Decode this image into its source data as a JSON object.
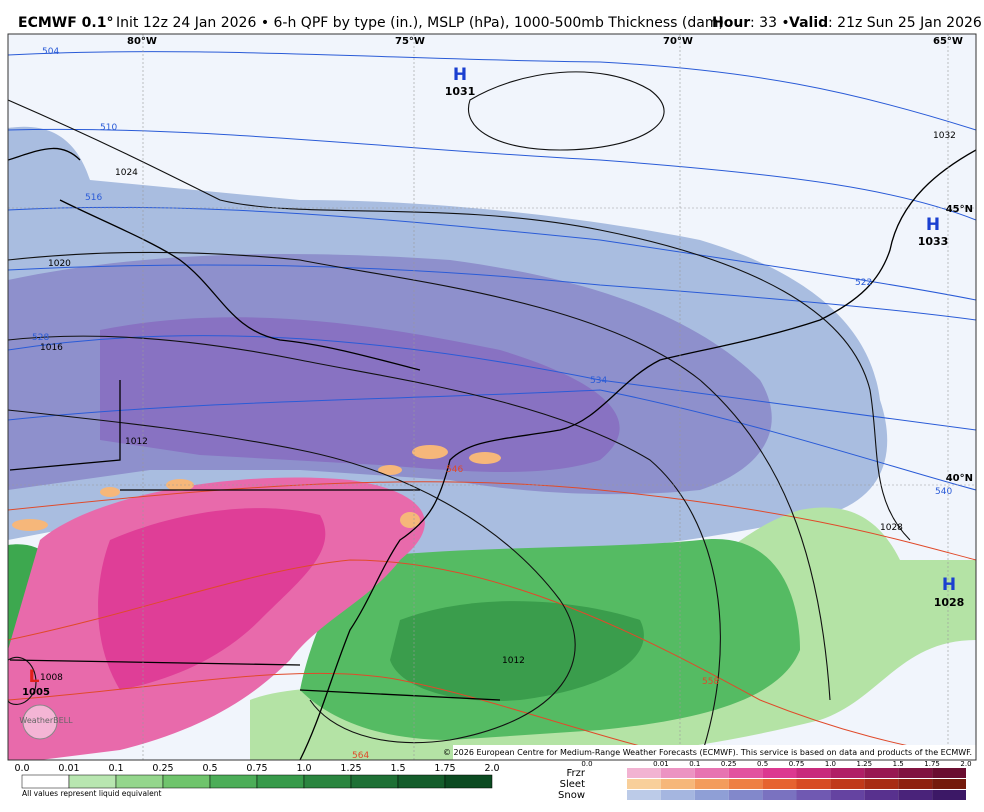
{
  "header": {
    "model": "ECMWF 0.1°",
    "description": "Init 12z 24 Jan 2026 • 6-h QPF by type (in.), MSLP (hPa), 1000-500mb Thickness (dam)",
    "hour_label": "Hour",
    "hour": ": 33 •",
    "valid_label": "Valid",
    "valid": ": 21z Sun 25 Jan 2026"
  },
  "map": {
    "longitudes": [
      "80°W",
      "75°W",
      "70°W",
      "65°W"
    ],
    "latitudes": [
      "45°N",
      "40°N"
    ],
    "pressure_centers": [
      {
        "symbol": "H",
        "value": "1031"
      },
      {
        "symbol": "H",
        "value": "1033"
      },
      {
        "symbol": "H",
        "value": "1028"
      },
      {
        "symbol": "L",
        "value": "1005"
      }
    ],
    "contour_labels": [
      "504",
      "510",
      "516",
      "1024",
      "1020",
      "528",
      "1016",
      "1012",
      "534",
      "540",
      "546",
      "1032",
      "522",
      "1028",
      "558",
      "564",
      "1012",
      "1008"
    ],
    "credit": "© 2026 European Centre for Medium-Range Weather Forecasts (ECMWF). This service is based on data and products of the ECMWF.",
    "watermark": "WeatherBELL"
  },
  "legend": {
    "ticks": [
      "0.0",
      "0.01",
      "0.1",
      "0.25",
      "0.5",
      "0.75",
      "1.0",
      "1.25",
      "1.5",
      "1.75",
      "2.0"
    ],
    "note": "All values represent liquid equivalent",
    "types": [
      "Frzr",
      "Sleet",
      "Snow"
    ]
  }
}
